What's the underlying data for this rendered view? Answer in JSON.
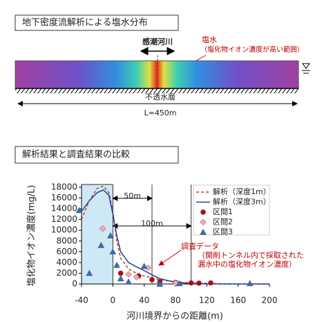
{
  "diagram": {
    "title": "地下密度流解析による塩水分布",
    "river_label": "感潮河川",
    "salt_label": "塩水",
    "salt_note": "（塩化物イオン濃度が高い範囲）",
    "bed_label": "不透水層",
    "length_label": "L=450m"
  },
  "chart_data": {
    "type": "line",
    "title": "解析結果と調査結果の比較",
    "x_label": "河川境界からの距離(m)",
    "y_label": "塩化物イオン濃度(mg/L)",
    "xlim": [
      -40,
      200
    ],
    "xticks": [
      -40,
      0,
      40,
      80,
      120,
      160,
      200
    ],
    "ylim": [
      0,
      18000
    ],
    "yticks": [
      0,
      2000,
      4000,
      6000,
      8000,
      10000,
      12000,
      14000,
      16000,
      18000
    ],
    "shaded_range": [
      -40,
      0
    ],
    "ref_lines": [
      {
        "value": 50,
        "label": "50m"
      },
      {
        "value": 100,
        "label": "100m"
      }
    ],
    "annotation": [
      "調査データ",
      "（開削トンネル内で採取された",
      "漏水中の塩化物イオン濃度）"
    ],
    "series": [
      {
        "name": "解析（深度1m）",
        "kind": "line",
        "style": "dashed",
        "color": "#c0392b",
        "x": [
          -40,
          -30,
          -20,
          -12,
          -5,
          0,
          5,
          10,
          20,
          30,
          40,
          60,
          80,
          100,
          140,
          200
        ],
        "values": [
          12000,
          15500,
          17800,
          18200,
          17000,
          13500,
          8000,
          4800,
          2800,
          2000,
          1500,
          800,
          400,
          200,
          50,
          0
        ]
      },
      {
        "name": "解析（深度3m）",
        "kind": "line",
        "style": "solid",
        "color": "#1f3f9f",
        "x": [
          -40,
          -30,
          -20,
          -12,
          -5,
          0,
          5,
          10,
          20,
          30,
          40,
          50,
          60,
          80,
          100,
          140,
          200
        ],
        "values": [
          13500,
          15500,
          17000,
          17500,
          16500,
          13000,
          9000,
          6000,
          4000,
          3200,
          2500,
          1700,
          1000,
          300,
          100,
          0,
          0
        ]
      },
      {
        "name": "区間1",
        "kind": "scatter",
        "marker": "circle",
        "color": "#c00000",
        "x": [
          10,
          33,
          50,
          60,
          80,
          100,
          110,
          125
        ],
        "values": [
          2000,
          1500,
          800,
          400,
          300,
          200,
          150,
          200
        ]
      },
      {
        "name": "区間2",
        "kind": "scatter",
        "marker": "diamond",
        "color": "#f4a6b8",
        "x": [
          -13,
          20,
          30,
          45,
          80
        ],
        "values": [
          10300,
          1800,
          1300,
          3000,
          200
        ]
      },
      {
        "name": "区間3",
        "kind": "scatter",
        "marker": "triangle",
        "color": "#2e6fc0",
        "x": [
          -43,
          -30,
          -15,
          -3,
          0,
          5,
          10,
          20,
          40,
          60,
          85,
          175
        ],
        "values": [
          13700,
          2000,
          7200,
          9000,
          6000,
          3500,
          1000,
          400,
          3300,
          0,
          100,
          100
        ]
      }
    ]
  }
}
